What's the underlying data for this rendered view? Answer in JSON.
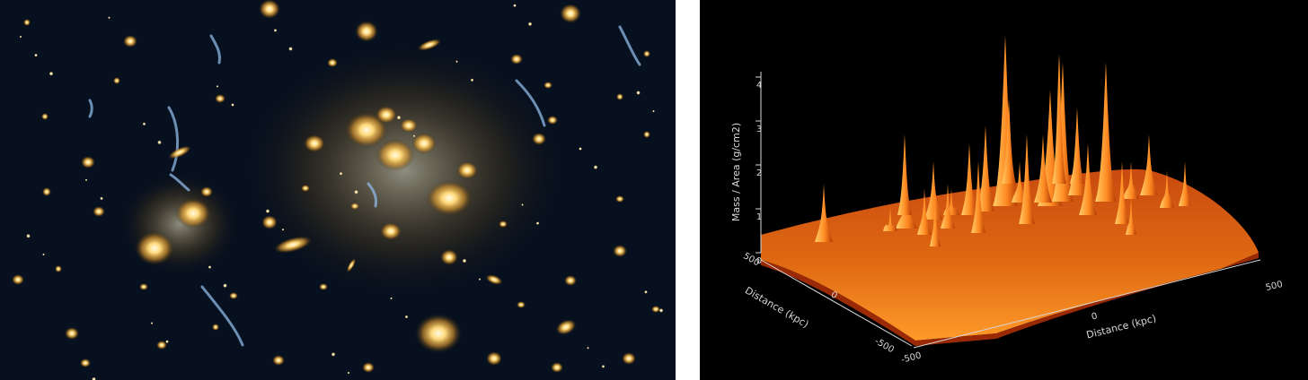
{
  "left_panel": {
    "description": "",
    "background": "#06101f"
  },
  "right_panel": {
    "background": "#000000",
    "surface_colors": [
      "#8a1800",
      "#d04000",
      "#ff7a10",
      "#ffb24a"
    ],
    "z_axis": {
      "label": "Mass / Area (g/cm2)",
      "ticks": [
        "0",
        "1",
        "2",
        "3",
        "4"
      ]
    },
    "x_axis": {
      "label": "Distance (kpc)",
      "ticks": [
        "-500",
        "0",
        "500"
      ]
    },
    "y_axis": {
      "label": "Distance (kpc)",
      "ticks": [
        "-500",
        "0",
        "500"
      ]
    }
  }
}
